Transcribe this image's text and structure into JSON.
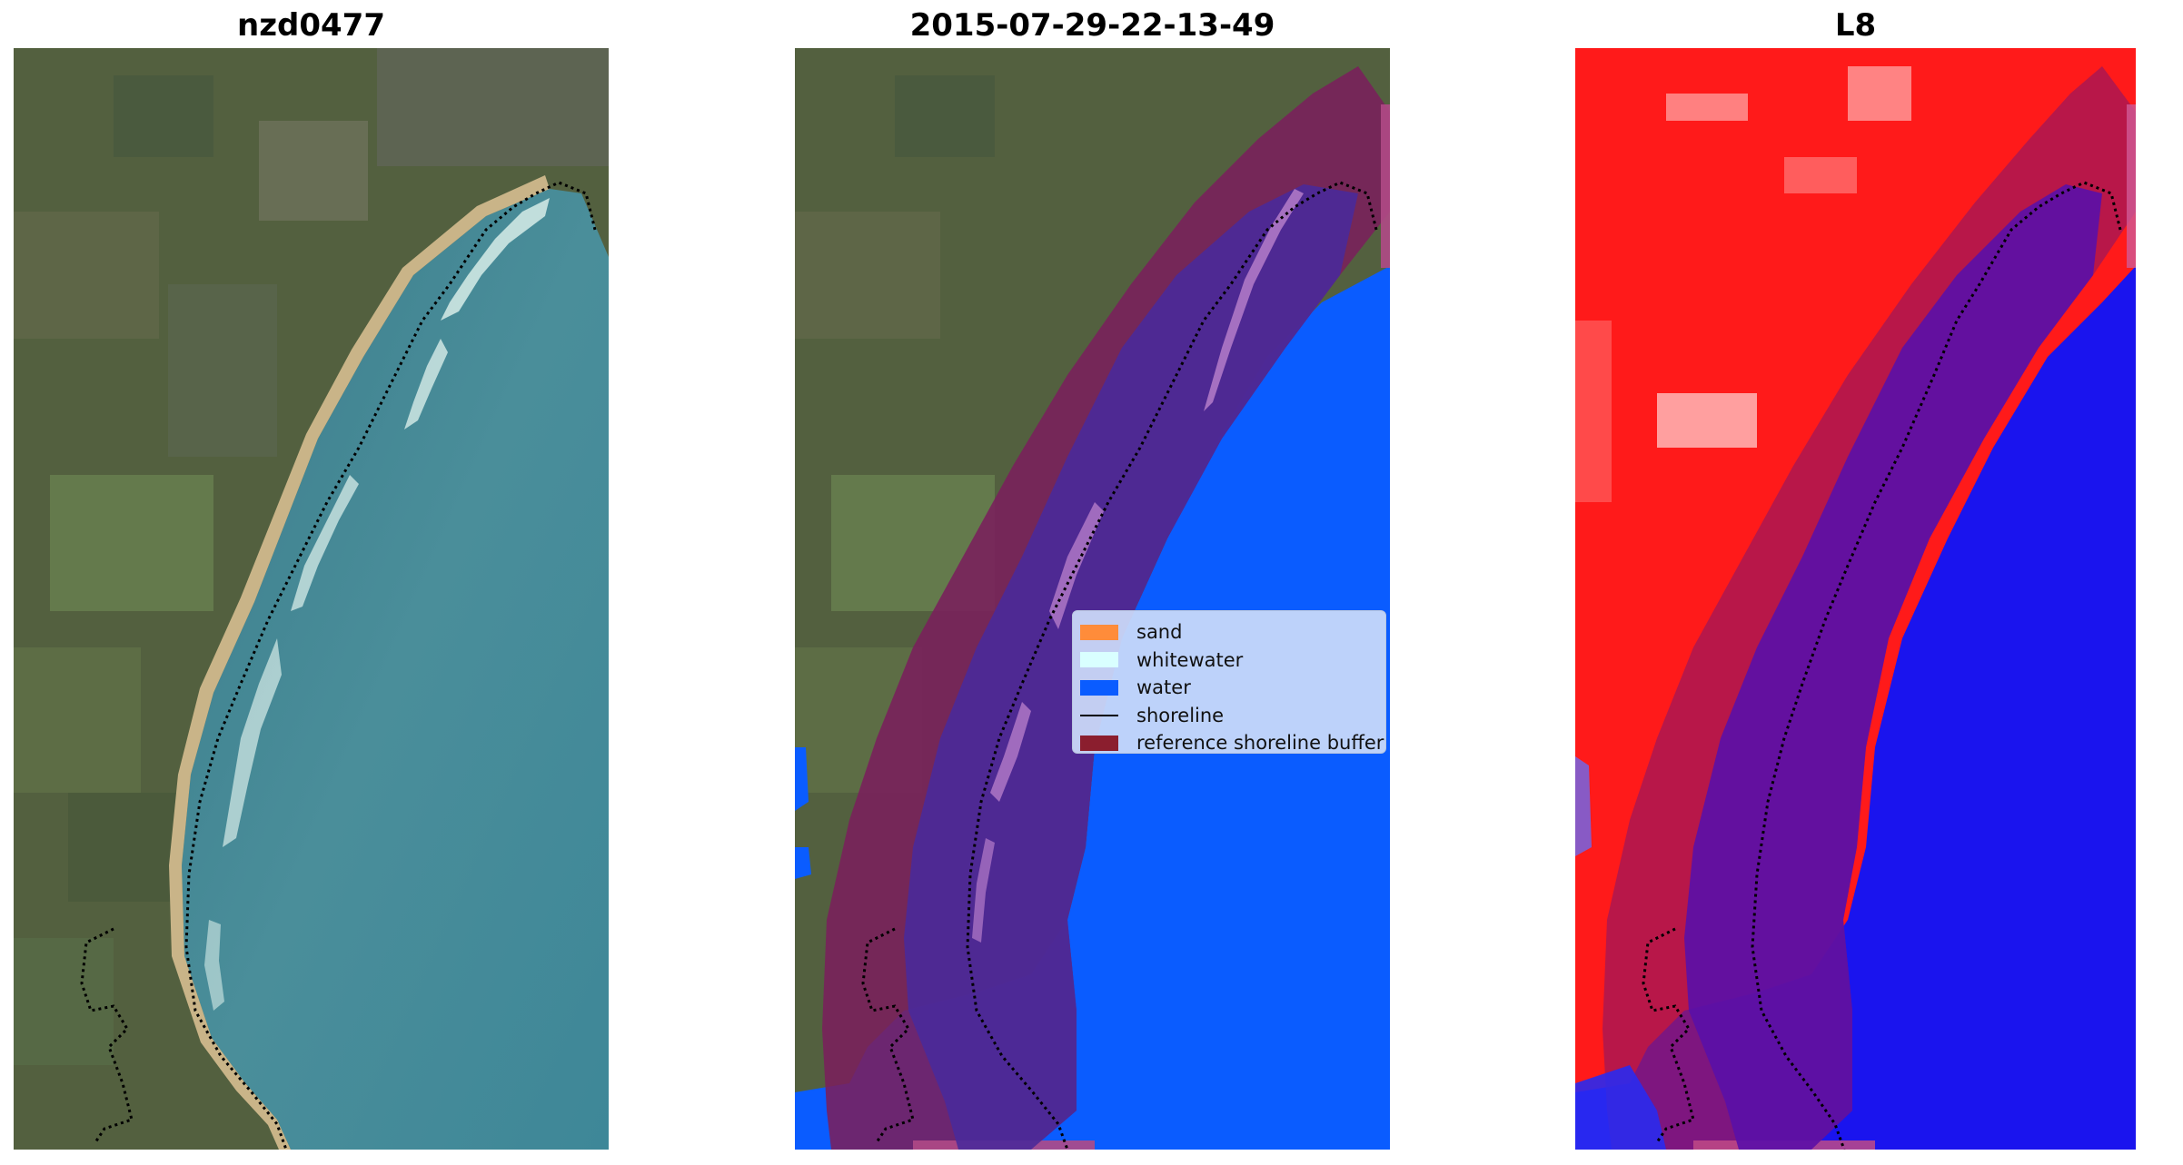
{
  "panels": [
    {
      "title": "nzd0477"
    },
    {
      "title": "2015-07-29-22-13-49"
    },
    {
      "title": "L8"
    }
  ],
  "legend": {
    "items": [
      {
        "label": "sand",
        "color": "#ff8c3a",
        "kind": "patch"
      },
      {
        "label": "whitewater",
        "color": "#d9ffff",
        "kind": "patch"
      },
      {
        "label": "water",
        "color": "#0a5cff",
        "kind": "patch"
      },
      {
        "label": "shoreline",
        "color": "#000000",
        "kind": "line"
      },
      {
        "label": "reference shoreline buffer",
        "color": "#8b1e2e",
        "kind": "patch"
      }
    ]
  },
  "colors": {
    "land": "#4f5e3f",
    "sea": "#3e8493",
    "sand_beach": "#c9b488",
    "classified_water": "#0a5cff",
    "buffer_overlay": "#7a1f5c",
    "index_land": "#ff1a1a",
    "index_water": "#1a14ee"
  }
}
